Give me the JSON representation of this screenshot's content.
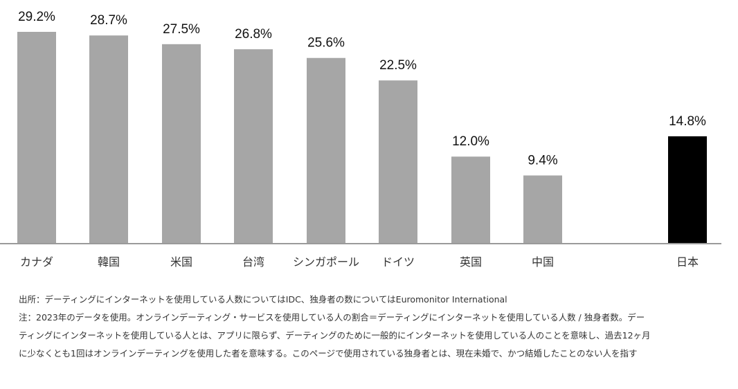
{
  "chart_data": {
    "type": "bar",
    "categories": [
      "カナダ",
      "韓国",
      "米国",
      "台湾",
      "シンガポール",
      "ドイツ",
      "英国",
      "中国",
      "日本"
    ],
    "values": [
      29.2,
      28.7,
      27.5,
      26.8,
      25.6,
      22.5,
      12.0,
      9.4,
      14.8
    ],
    "value_labels": [
      "29.2%",
      "28.7%",
      "27.5%",
      "26.8%",
      "25.6%",
      "22.5%",
      "12.0%",
      "9.4%",
      "14.8%"
    ],
    "bar_colors": [
      "#a6a6a6",
      "#a6a6a6",
      "#a6a6a6",
      "#a6a6a6",
      "#a6a6a6",
      "#a6a6a6",
      "#a6a6a6",
      "#a6a6a6",
      "#000000"
    ],
    "ylim": [
      0,
      29.2
    ],
    "grid": false,
    "legend": "none"
  },
  "notes": {
    "source": "出所：デーティングにインターネットを使用している人数についてはIDC、独身者の数についてはEuromonitor International",
    "note_line1": "注：2023年のデータを使用。オンラインデーティング・サービスを使用している人の割合＝デーティングにインターネットを使用している人数 / 独身者数。デー",
    "note_line2": "ティングにインターネットを使用している人とは、アプリに限らず、デーティングのために一般的にインターネットを使用している人のことを意味し、過去12ヶ月",
    "note_line3": "に少なくとも1回はオンラインデーティングを使用した者を意味する。このページで使用されている独身者とは、現在未婚で、かつ結婚したことのない人を指す"
  }
}
